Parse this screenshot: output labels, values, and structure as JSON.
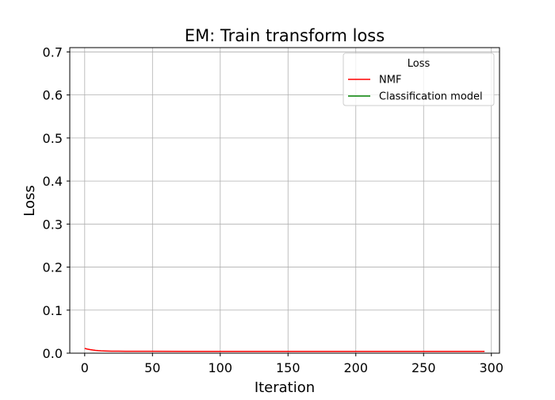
{
  "chart_data": {
    "type": "line",
    "title": "EM: Train transform loss",
    "xlabel": "Iteration",
    "ylabel": "Loss",
    "xlim": [
      -11,
      306
    ],
    "ylim": [
      0,
      0.71
    ],
    "xticks": [
      0,
      50,
      100,
      150,
      200,
      250,
      300
    ],
    "xtick_labels": [
      "0",
      "50",
      "100",
      "150",
      "200",
      "250",
      "300"
    ],
    "yticks": [
      0.0,
      0.1,
      0.2,
      0.3,
      0.4,
      0.5,
      0.6,
      0.7
    ],
    "ytick_labels": [
      "0.0",
      "0.1",
      "0.2",
      "0.3",
      "0.4",
      "0.5",
      "0.6",
      "0.7"
    ],
    "grid": true,
    "legend": {
      "title": "Loss",
      "placement": "top-right"
    },
    "series": [
      {
        "name": "NMF",
        "color": "#ff0000",
        "x": [
          0,
          2,
          4,
          6,
          8,
          10,
          12,
          15,
          20,
          25,
          30,
          40,
          50,
          75,
          100,
          150,
          200,
          250,
          295
        ],
        "y": [
          0.011,
          0.0095,
          0.0083,
          0.0073,
          0.0065,
          0.0059,
          0.0055,
          0.0051,
          0.0047,
          0.0045,
          0.0044,
          0.0043,
          0.0043,
          0.0042,
          0.0042,
          0.0042,
          0.0042,
          0.0042,
          0.0042
        ]
      },
      {
        "name": "Classification model",
        "color": "#008000",
        "x": [],
        "y": []
      }
    ]
  }
}
